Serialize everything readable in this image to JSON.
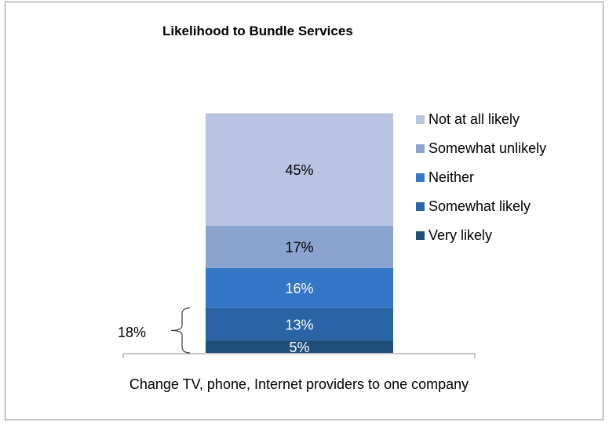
{
  "chart_data": {
    "type": "bar",
    "stacked": true,
    "title": "Likelihood to Bundle Services",
    "categories": [
      "Change TV, phone, Internet providers to one company"
    ],
    "ylim": [
      0,
      100
    ],
    "grid": false,
    "legend_position": "right",
    "series": [
      {
        "name": "Very likely",
        "values": [
          5
        ],
        "label": "5%",
        "color": "#1f4e79"
      },
      {
        "name": "Somewhat likely",
        "values": [
          13
        ],
        "label": "13%",
        "color": "#2a64a7"
      },
      {
        "name": "Neither",
        "values": [
          16
        ],
        "label": "16%",
        "color": "#3377c6"
      },
      {
        "name": "Somewhat unlikely",
        "values": [
          17
        ],
        "label": "17%",
        "color": "#8aa3cf"
      },
      {
        "name": "Not at all likely",
        "values": [
          45
        ],
        "label": "45%",
        "color": "#b8c4e1"
      }
    ],
    "annotation": {
      "text": "18%",
      "spans": [
        "Very likely",
        "Somewhat likely"
      ]
    }
  }
}
